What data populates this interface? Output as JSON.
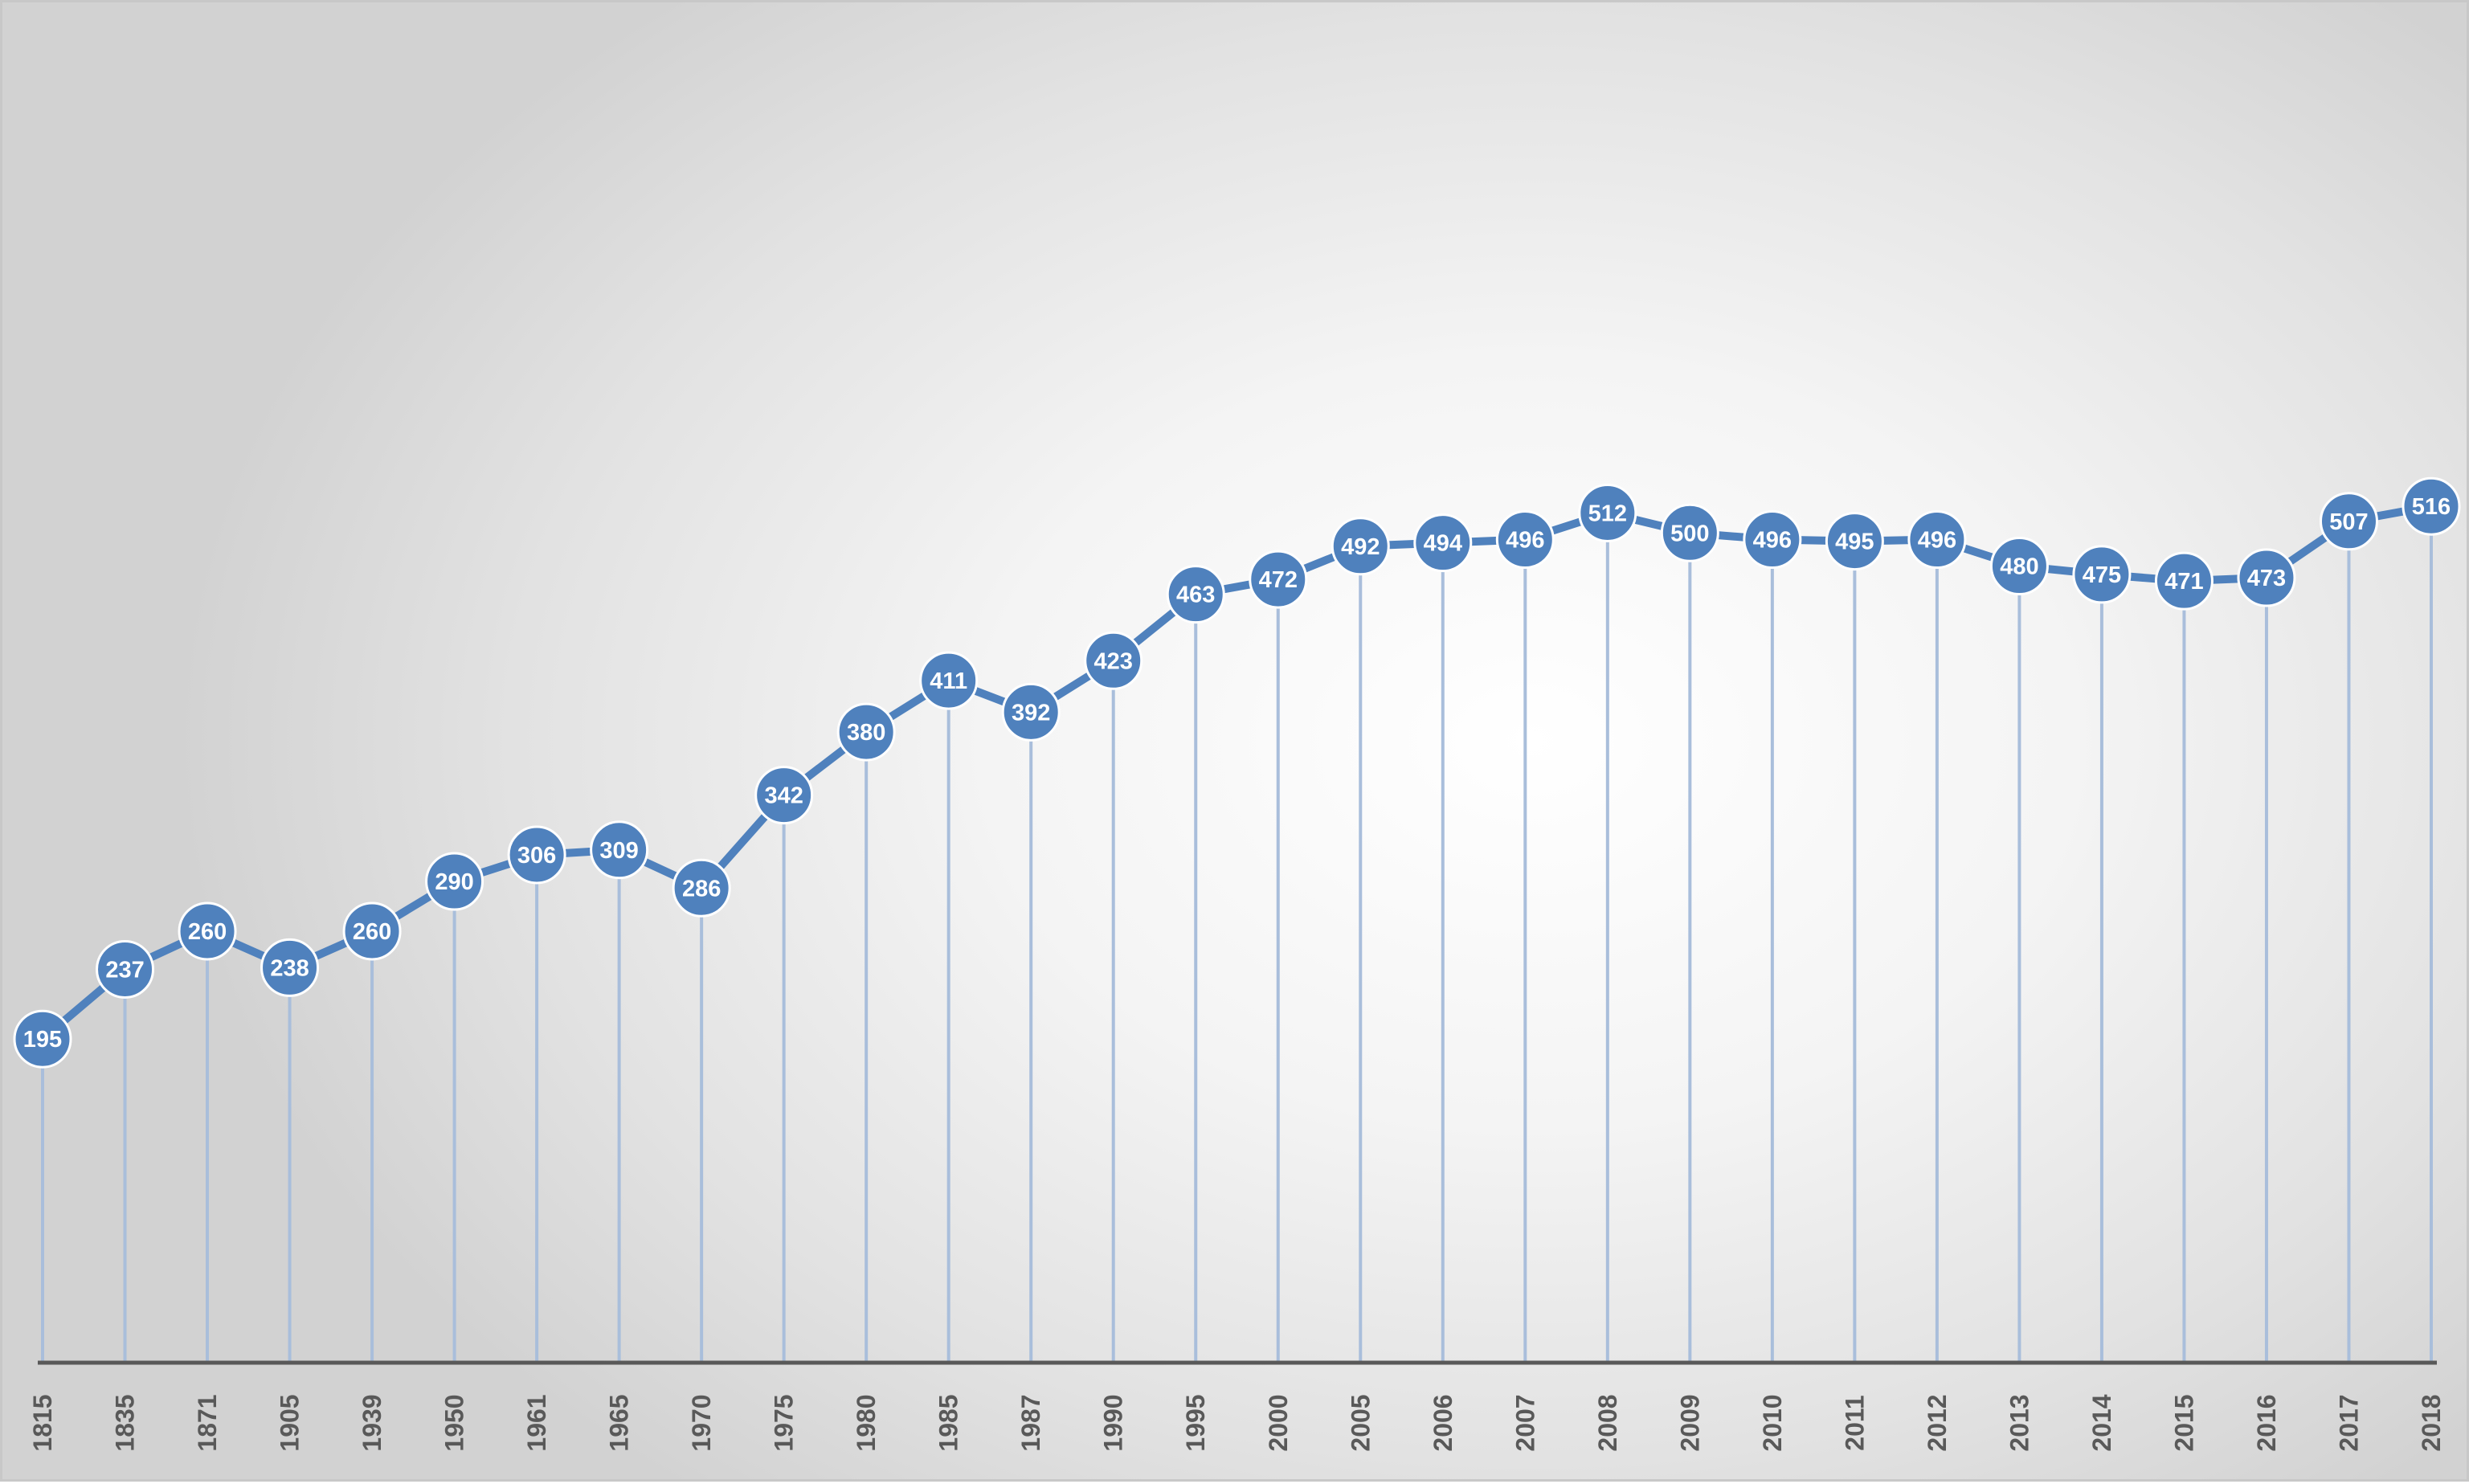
{
  "chart_data": {
    "type": "line",
    "categories": [
      "1815",
      "1835",
      "1871",
      "1905",
      "1939",
      "1950",
      "1961",
      "1965",
      "1970",
      "1975",
      "1980",
      "1985",
      "1987",
      "1990",
      "1995",
      "2000",
      "2005",
      "2006",
      "2007",
      "2008",
      "2009",
      "2010",
      "2011",
      "2012",
      "2013",
      "2014",
      "2015",
      "2016",
      "2017",
      "2018"
    ],
    "series": [
      {
        "values": [
          195,
          237,
          260,
          238,
          260,
          290,
          306,
          309,
          286,
          342,
          380,
          411,
          392,
          423,
          463,
          472,
          492,
          494,
          496,
          512,
          500,
          496,
          495,
          496,
          480,
          475,
          471,
          473,
          507,
          516
        ]
      }
    ],
    "ylim": [
      0,
      560
    ],
    "grid": false,
    "drop_lines": true,
    "data_labels": true,
    "colors": {
      "series": "#4f81bd",
      "drop_line": "#a9bedb",
      "axis": "#595959",
      "label_text": "#ffffff"
    }
  }
}
